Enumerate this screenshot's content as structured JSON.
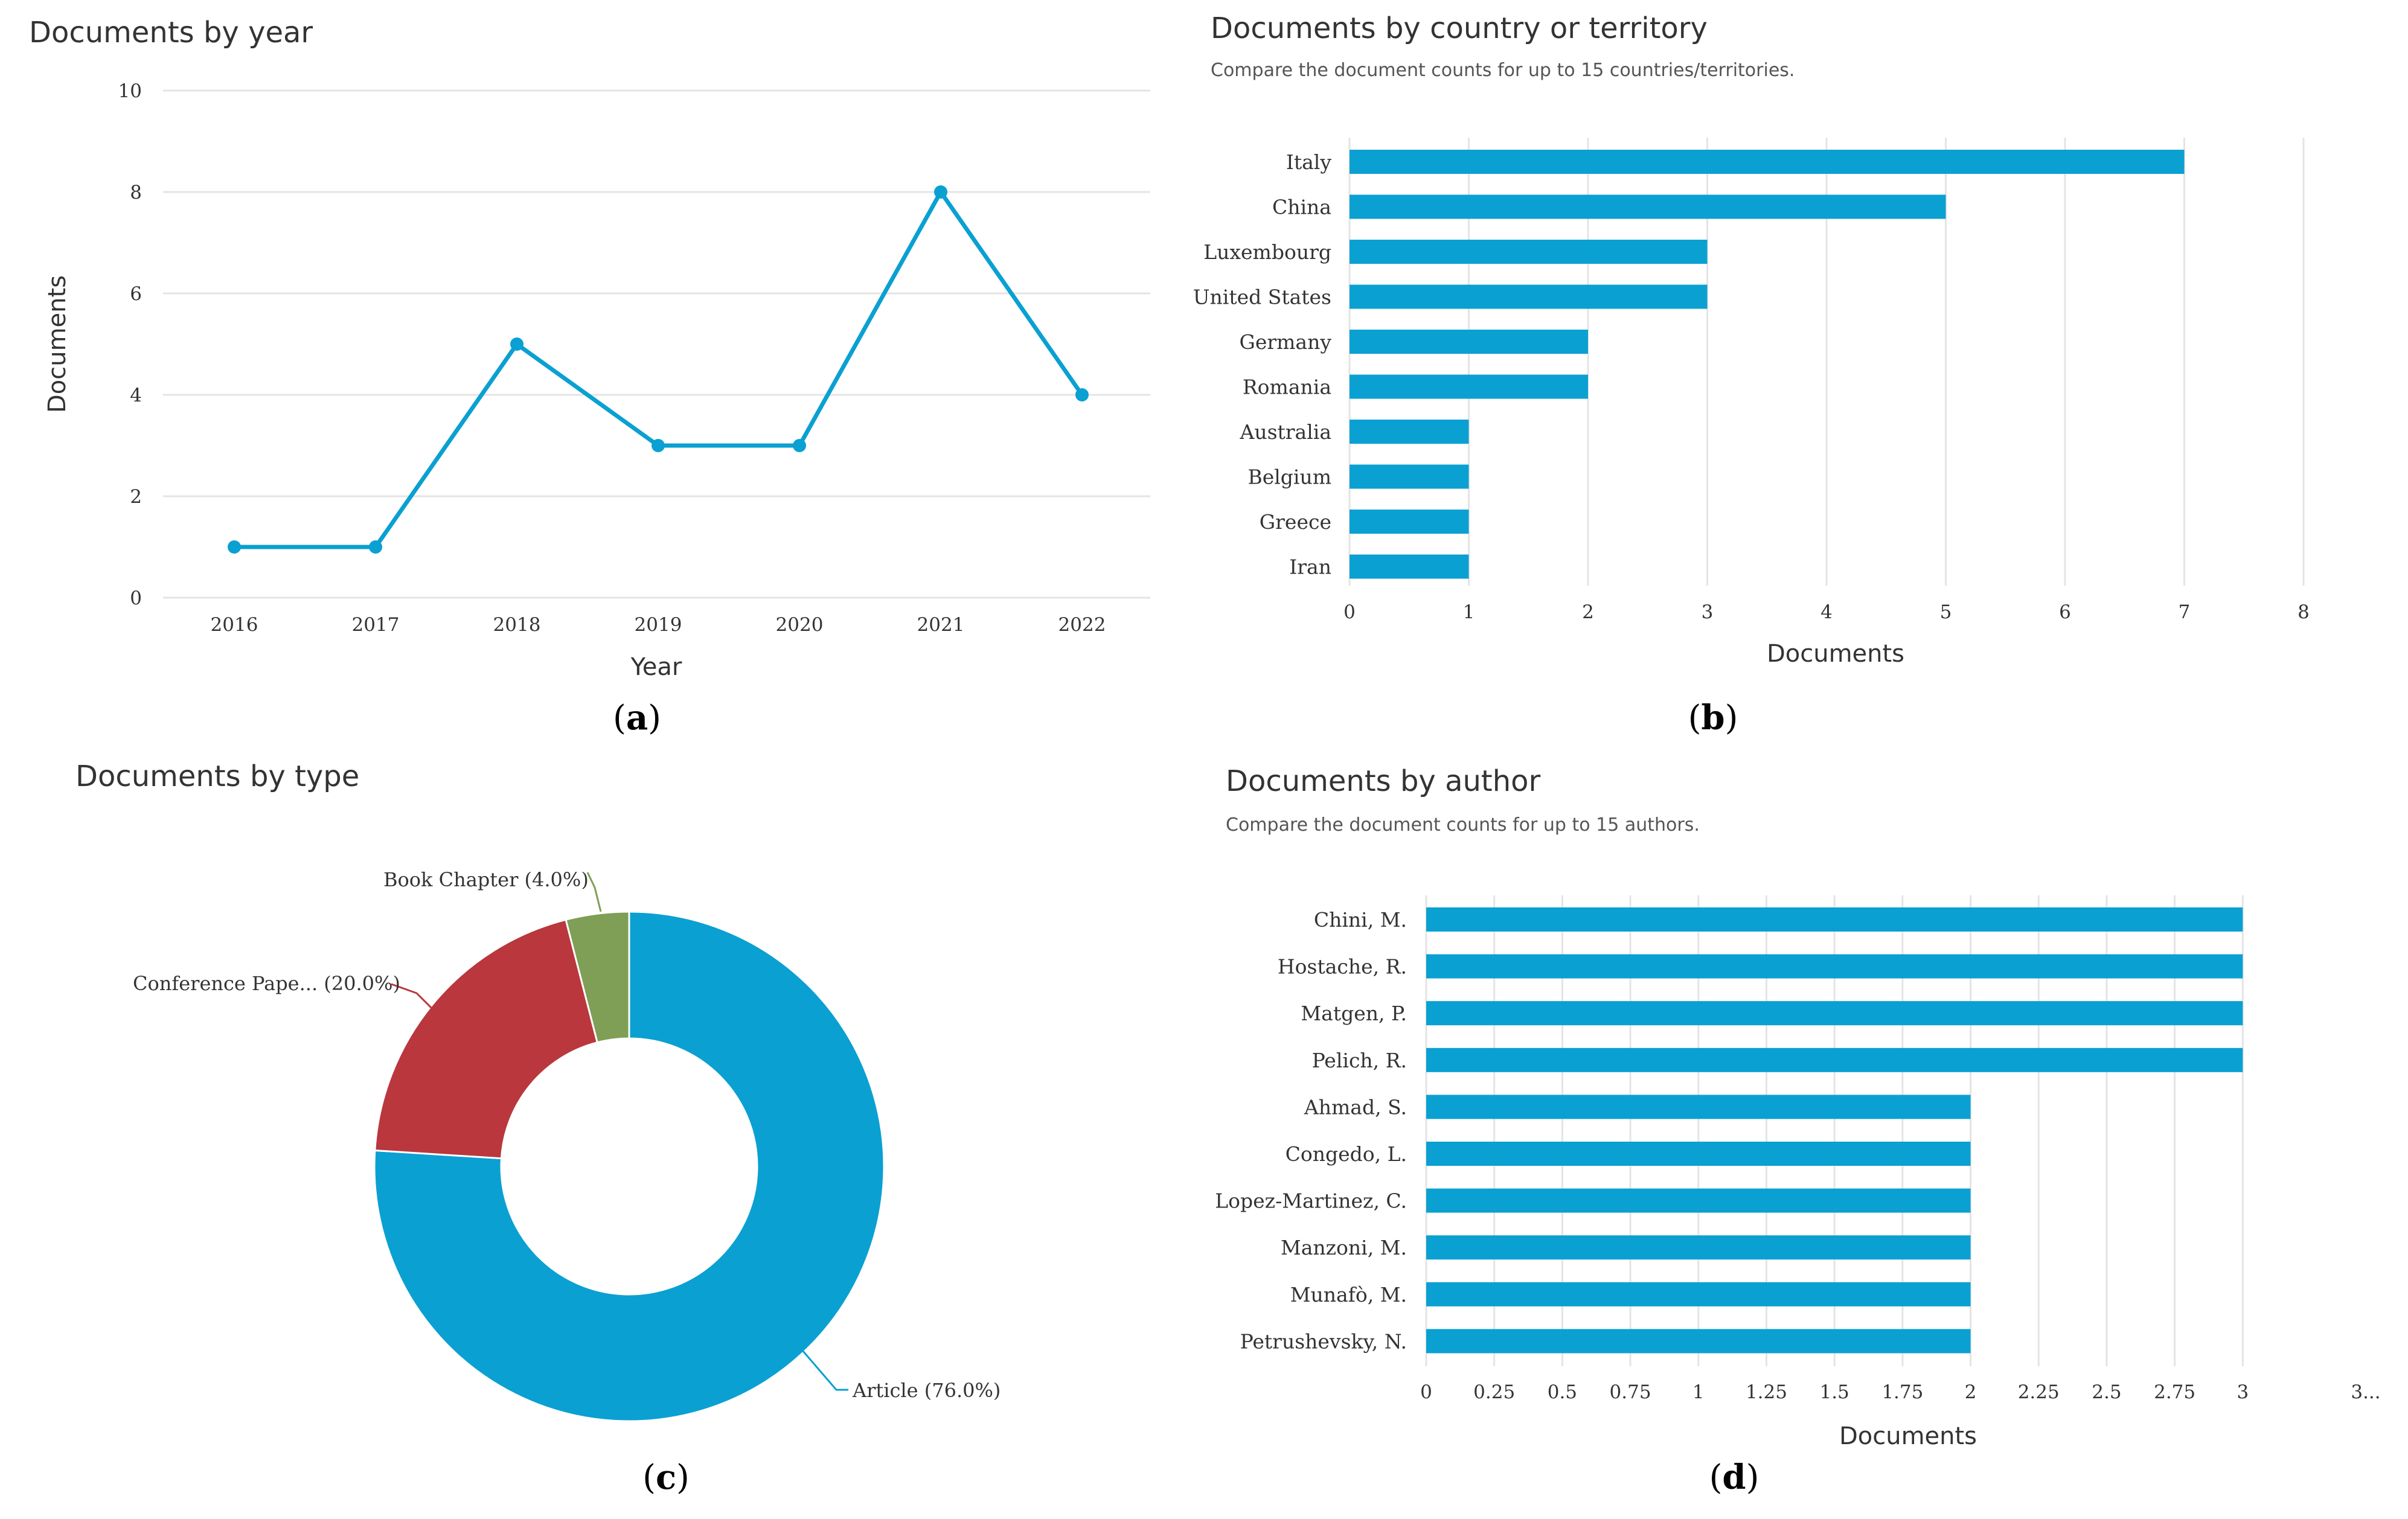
{
  "chart_data": [
    {
      "type": "line",
      "panel": "a",
      "title": "Documents by year",
      "subtitle": "",
      "x": [
        "2016",
        "2017",
        "2018",
        "2019",
        "2020",
        "2021",
        "2022"
      ],
      "values": [
        1,
        1,
        5,
        3,
        3,
        8,
        4
      ],
      "xlabel": "Year",
      "ylabel": "Documents",
      "ylim": [
        0,
        10
      ],
      "yticks": [
        "0",
        "2",
        "4",
        "6",
        "8",
        "10"
      ],
      "grid": true,
      "color": "#0aa0d2"
    },
    {
      "type": "bar",
      "orientation": "horizontal",
      "panel": "b",
      "title": "Documents by country or territory",
      "subtitle": "Compare the document counts for up to 15 countries/territories.",
      "categories": [
        "Italy",
        "China",
        "Luxembourg",
        "United States",
        "Germany",
        "Romania",
        "Australia",
        "Belgium",
        "Greece",
        "Iran"
      ],
      "values": [
        7,
        5,
        3,
        3,
        2,
        2,
        1,
        1,
        1,
        1
      ],
      "xlabel": "Documents",
      "xlim": [
        0,
        8
      ],
      "xticks": [
        "0",
        "1",
        "2",
        "3",
        "4",
        "5",
        "6",
        "7",
        "8"
      ],
      "grid": true,
      "color": "#0aa0d2"
    },
    {
      "type": "pie",
      "donut": true,
      "panel": "c",
      "title": "Documents by type",
      "slices": [
        {
          "label": "Article (76.0%)",
          "value": 76.0,
          "color": "#0aa0d2"
        },
        {
          "label": "Conference Pape... (20.0%)",
          "value": 20.0,
          "color": "#b9373d"
        },
        {
          "label": "Book Chapter (4.0%)",
          "value": 4.0,
          "color": "#7e9f55"
        }
      ]
    },
    {
      "type": "bar",
      "orientation": "horizontal",
      "panel": "d",
      "title": "Documents by author",
      "subtitle": "Compare the document counts for up to 15 authors.",
      "categories": [
        "Chini, M.",
        "Hostache, R.",
        "Matgen, P.",
        "Pelich, R.",
        "Ahmad, S.",
        "Congedo, L.",
        "Lopez-Martinez, C.",
        "Manzoni, M.",
        "Munafò, M.",
        "Petrushevsky, N."
      ],
      "values": [
        3,
        3,
        3,
        3,
        2,
        2,
        2,
        2,
        2,
        2
      ],
      "xlabel": "Documents",
      "xlim": [
        0,
        3.25
      ],
      "xticks": [
        "0",
        "0.25",
        "0.5",
        "0.75",
        "1",
        "1.25",
        "1.5",
        "1.75",
        "2",
        "2.25",
        "2.5",
        "2.75",
        "3",
        "3..."
      ],
      "grid": true,
      "color": "#0aa0d2"
    }
  ]
}
